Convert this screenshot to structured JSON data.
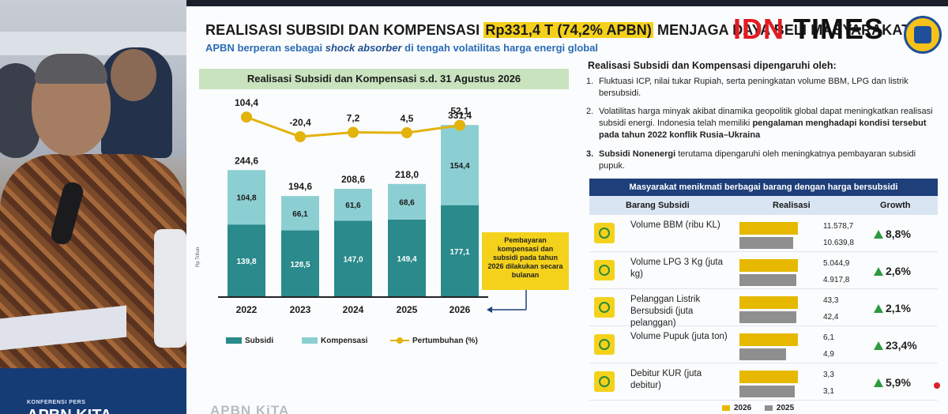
{
  "video": {
    "banner_label": "KONFERENSI PERS",
    "banner_big": "APBN KITA"
  },
  "header": {
    "title_pre": "REALISASI SUBSIDI DAN KOMPENSASI ",
    "title_highlight": "Rp331,4 T (74,2% APBN)",
    "title_post": "  MENJAGA DAYA BELI MASYARAKAT",
    "subtitle_pre": "APBN berperan sebagai ",
    "subtitle_italic": "shock absorber",
    "subtitle_post": " di tengah volatilitas harga energi global",
    "logo_red": "IDN",
    "logo_black": "TIMES"
  },
  "chart_data": {
    "type": "bar",
    "title": "Realisasi Subsidi dan Kompensasi s.d. 31 Agustus 2026",
    "ylabel": "Rp Triliun",
    "categories": [
      "2022",
      "2023",
      "2024",
      "2025",
      "2026"
    ],
    "series": [
      {
        "name": "Subsidi",
        "values": [
          139.8,
          128.5,
          147.0,
          149.4,
          177.1
        ],
        "labels": [
          "139,8",
          "128,5",
          "147,0",
          "149,4",
          "177,1"
        ],
        "color": "#2a8a8c"
      },
      {
        "name": "Kompensasi",
        "values": [
          104.8,
          66.1,
          61.6,
          68.6,
          154.4
        ],
        "labels": [
          "104,8",
          "66,1",
          "61,6",
          "68,6",
          "154,4"
        ],
        "color": "#8ccfd2"
      }
    ],
    "totals": [
      "244,6",
      "194,6",
      "208,6",
      "218,0",
      "331,4"
    ],
    "growth": {
      "name": "Pertumbuhan (%)",
      "values": [
        104.4,
        -20.4,
        7.2,
        4.5,
        52.1
      ],
      "labels": [
        "104,4",
        "-20,4",
        "7,2",
        "4,5",
        "52,1"
      ],
      "color": "#e3b20b"
    },
    "stacked": true,
    "legend": "bottom"
  },
  "note": "Pembayaran kompensasi dan subsidi pada tahun 2026 dilakukan secara bulanan",
  "right": {
    "title": "Realisasi Subsidi dan Kompensasi dipengaruhi oleh:",
    "points": [
      {
        "num": "1.",
        "text": "Fluktuasi ICP, nilai tukar Rupiah, serta peningkatan volume BBM, LPG dan listrik bersubsidi."
      },
      {
        "num": "2.",
        "text_pre": "Volatilitas harga minyak akibat dinamika geopolitik global dapat meningkatkan realisasi subsidi energi. Indonesia telah memiliki ",
        "text_bold": "pengalaman menghadapi kondisi tersebut pada tahun 2022 konflik Rusia–Ukraina"
      },
      {
        "num": "3.",
        "text_bold": "Subsidi Nonenergi",
        "text_post": " terutama dipengaruhi oleh meningkatnya pembayaran subsidi pupuk."
      }
    ]
  },
  "table": {
    "header": "Masyarakat menikmati berbagai barang dengan harga bersubsidi",
    "col1": "Barang Subsidi",
    "col2": "Realisasi",
    "col3": "Growth",
    "rows": [
      {
        "name": "Volume BBM (ribu KL)",
        "v2026": 11578.7,
        "v2025": 10639.8,
        "l2026": "11.578,7",
        "l2025": "10.639,8",
        "growth": "8,8%",
        "icon": "fuel-pump-icon"
      },
      {
        "name": "Volume LPG 3 Kg (juta kg)",
        "v2026": 5044.9,
        "v2025": 4917.8,
        "l2026": "5.044,9",
        "l2025": "4.917,8",
        "growth": "2,6%",
        "icon": "gas-cylinder-icon"
      },
      {
        "name": "Pelanggan Listrik Bersubsidi (juta pelanggan)",
        "v2026": 43.3,
        "v2025": 42.4,
        "l2026": "43,3",
        "l2025": "42,4",
        "growth": "2,1%",
        "icon": "lightning-icon"
      },
      {
        "name": "Volume Pupuk (juta ton)",
        "v2026": 6.1,
        "v2025": 4.9,
        "l2026": "6,1",
        "l2025": "4,9",
        "growth": "23,4%",
        "icon": "fertilizer-icon"
      },
      {
        "name": "Debitur KUR (juta debitur)",
        "v2026": 3.3,
        "v2025": 3.1,
        "l2026": "3,3",
        "l2025": "3,1",
        "growth": "5,9%",
        "icon": "hand-coin-icon"
      }
    ],
    "legend_2026": "2026",
    "legend_2025": "2025",
    "color_2026": "#e6b900",
    "color_2025": "#8f8f8f"
  },
  "footer": "APBN KiTA"
}
